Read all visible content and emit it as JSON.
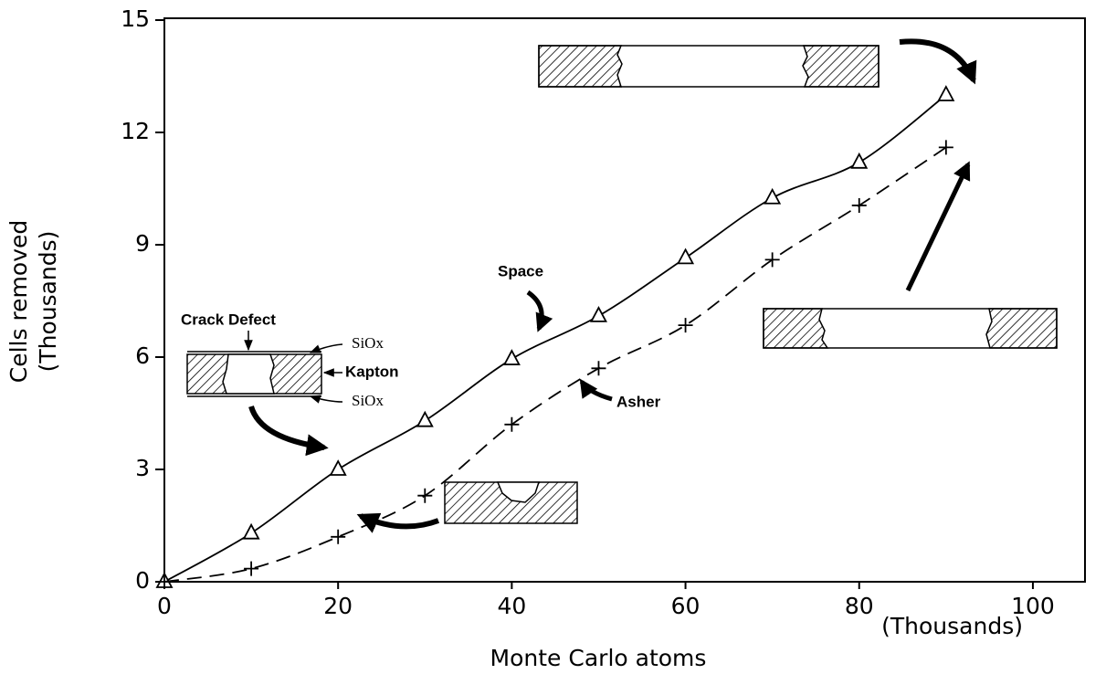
{
  "chart_data": {
    "type": "line",
    "x_label": "Monte Carlo atoms",
    "x_unit": "(Thousands)",
    "y_label": "Cells removed",
    "y_unit": "(Thousands)",
    "x": [
      0,
      10,
      20,
      30,
      40,
      50,
      60,
      70,
      80,
      90
    ],
    "series": [
      {
        "name": "Space",
        "color": "#000000",
        "style": "solid",
        "marker": "triangle",
        "values": [
          0,
          1.3,
          3.0,
          4.3,
          5.95,
          7.1,
          8.65,
          10.25,
          11.2,
          13.0
        ]
      },
      {
        "name": "Asher",
        "color": "#000000",
        "style": "dashed",
        "marker": "plus",
        "values": [
          0,
          0.35,
          1.2,
          2.3,
          4.2,
          5.7,
          6.85,
          8.6,
          10.05,
          11.6
        ]
      }
    ],
    "xlim": [
      0,
      106
    ],
    "xticks": [
      0,
      20,
      40,
      60,
      80,
      100
    ],
    "ylim": [
      0,
      15
    ],
    "yticks": [
      0,
      3,
      6,
      9,
      12,
      15
    ],
    "annotations": {
      "crack": "Crack Defect",
      "siox_top": "SiOx",
      "kapton": "Kapton",
      "siox_bottom": "SiOx"
    }
  }
}
